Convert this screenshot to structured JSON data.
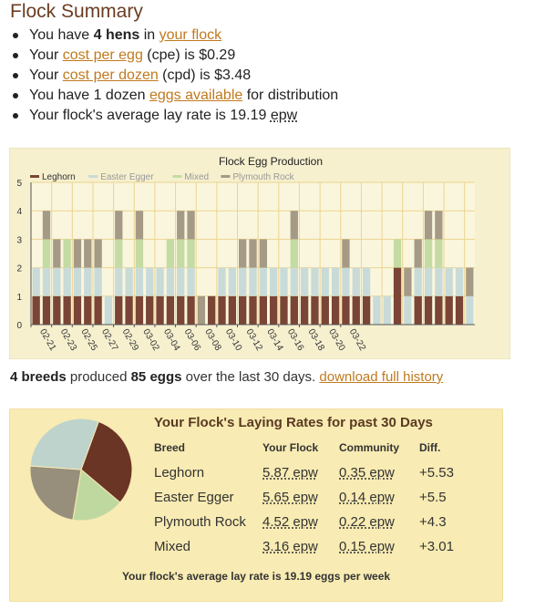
{
  "page_title": "Flock Summary",
  "summary": {
    "hens": {
      "pre": "You have ",
      "bold": "4 hens",
      "mid": " in ",
      "link": "your flock"
    },
    "cpe": {
      "pre": "Your ",
      "link": "cost per egg",
      "post": " (cpe) is $0.29"
    },
    "cpd": {
      "pre": "Your ",
      "link": "cost per dozen",
      "post": " (cpd) is $3.48"
    },
    "dozen": {
      "pre": "You have 1 dozen ",
      "link": "eggs available",
      "post": " for distribution"
    },
    "lay": {
      "pre": "Your flock's average lay rate is 19.19 ",
      "unit": "epw"
    }
  },
  "chart_data": {
    "type": "bar",
    "stacked": true,
    "title": "Flock Egg Production",
    "legend_position": "top-left",
    "ylim": [
      0,
      5
    ],
    "yticks": [
      "0",
      "1",
      "2",
      "3",
      "4",
      "5"
    ],
    "xtick_labels": [
      "02-21",
      "02-23",
      "02-25",
      "02-27",
      "02-29",
      "03-02",
      "03-04",
      "03-06",
      "03-08",
      "03-10",
      "03-12",
      "03-14",
      "03-16",
      "03-18",
      "03-20",
      "03-22"
    ],
    "series": [
      {
        "name": "Leghorn",
        "color": "#7a4536",
        "values": [
          1,
          1,
          1,
          1,
          1,
          1,
          1,
          0,
          1,
          1,
          1,
          1,
          1,
          1,
          1,
          1,
          0,
          1,
          1,
          1,
          1,
          1,
          1,
          1,
          1,
          1,
          1,
          1,
          1,
          1,
          1,
          1,
          1,
          0,
          0,
          2,
          0,
          1,
          1,
          1,
          1,
          1,
          0
        ]
      },
      {
        "name": "Easter Egger",
        "color": "#c9dbd8",
        "values": [
          1,
          1,
          1,
          1,
          1,
          1,
          1,
          1,
          1,
          1,
          1,
          1,
          1,
          1,
          1,
          1,
          0,
          0,
          1,
          1,
          1,
          1,
          1,
          1,
          1,
          1,
          1,
          1,
          1,
          1,
          1,
          1,
          1,
          1,
          1,
          0,
          1,
          1,
          1,
          1,
          1,
          1,
          1
        ]
      },
      {
        "name": "Mixed",
        "color": "#c4dba3",
        "values": [
          0,
          1,
          0,
          1,
          0,
          0,
          0,
          0,
          1,
          0,
          1,
          0,
          0,
          1,
          1,
          1,
          0,
          0,
          0,
          0,
          0,
          0,
          0,
          0,
          0,
          1,
          0,
          0,
          0,
          0,
          0,
          0,
          0,
          0,
          0,
          1,
          0,
          0,
          1,
          1,
          0,
          0,
          0
        ]
      },
      {
        "name": "Plymouth Rock",
        "color": "#a59a86",
        "values": [
          0,
          1,
          1,
          0,
          1,
          1,
          1,
          0,
          1,
          0,
          1,
          0,
          0,
          0,
          1,
          1,
          1,
          0,
          0,
          0,
          1,
          1,
          1,
          0,
          0,
          1,
          0,
          0,
          0,
          0,
          1,
          0,
          0,
          0,
          0,
          0,
          1,
          1,
          1,
          1,
          0,
          0,
          1
        ]
      }
    ]
  },
  "production": {
    "breeds": "4 breeds",
    "mid": " produced ",
    "eggs": "85 eggs",
    "post": " over the last 30 days. ",
    "link": "download full history"
  },
  "rates": {
    "title": "Your Flock's Laying Rates for past 30 Days",
    "headers": [
      "Breed",
      "Your Flock",
      "Community",
      "Diff."
    ],
    "rows": [
      {
        "breed": "Leghorn",
        "flock": "5.87 epw",
        "community": "0.35 epw",
        "diff": "+5.53"
      },
      {
        "breed": "Easter Egger",
        "flock": "5.65 epw",
        "community": "0.14 epw",
        "diff": "+5.5"
      },
      {
        "breed": "Plymouth Rock",
        "flock": "4.52 epw",
        "community": "0.22 epw",
        "diff": "+4.3"
      },
      {
        "breed": "Mixed",
        "flock": "3.16 epw",
        "community": "0.15 epw",
        "diff": "+3.01"
      }
    ],
    "average": "Your flock's average lay rate is 19.19 eggs per week",
    "pie": [
      {
        "name": "Leghorn",
        "color": "#6b3526",
        "value": 5.87
      },
      {
        "name": "Mixed",
        "color": "#bfd8a0",
        "value": 3.16
      },
      {
        "name": "Plymouth Rock",
        "color": "#978f7b",
        "value": 4.52
      },
      {
        "name": "Easter Egger",
        "color": "#bdd3cc",
        "value": 5.65
      }
    ]
  }
}
